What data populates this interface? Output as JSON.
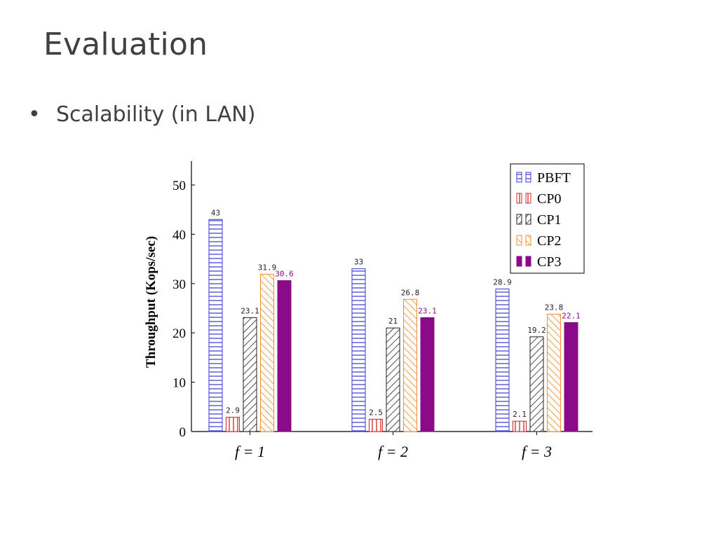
{
  "slide": {
    "title": "Evaluation",
    "bullet_symbol": "•",
    "bullet_text": "Scalability (in LAN)"
  },
  "chart_data": {
    "type": "bar",
    "title": "",
    "xlabel": "",
    "ylabel": "Throughput (Kops/sec)",
    "ylim": [
      0,
      55
    ],
    "yticks": [
      0,
      10,
      20,
      30,
      40,
      50
    ],
    "categories": [
      "f = 1",
      "f = 2",
      "f = 3"
    ],
    "legend_position": "top-right",
    "grid": false,
    "series": [
      {
        "name": "PBFT",
        "values": [
          43,
          33,
          28.9
        ],
        "pattern": "horizontal-lines",
        "color": "#3a3ad0"
      },
      {
        "name": "CP0",
        "values": [
          2.9,
          2.5,
          2.1
        ],
        "pattern": "vertical-lines",
        "color": "#cc2a2a"
      },
      {
        "name": "CP1",
        "values": [
          23.1,
          21,
          19.2
        ],
        "pattern": "diagonal-lines",
        "color": "#222222"
      },
      {
        "name": "CP2",
        "values": [
          31.9,
          26.8,
          23.8
        ],
        "pattern": "diagonal-lines-reverse",
        "color": "#f09030"
      },
      {
        "name": "CP3",
        "values": [
          30.6,
          23.1,
          22.1
        ],
        "pattern": "solid",
        "color": "#8a0a8a"
      }
    ],
    "data_labels": [
      [
        "43",
        "33",
        "28.9"
      ],
      [
        "2.9",
        "2.5",
        "2.1"
      ],
      [
        "23.1",
        "21",
        "19.2"
      ],
      [
        "31.9",
        "26.8",
        "23.8"
      ],
      [
        "30.6",
        "23.1",
        "22.1"
      ]
    ]
  }
}
